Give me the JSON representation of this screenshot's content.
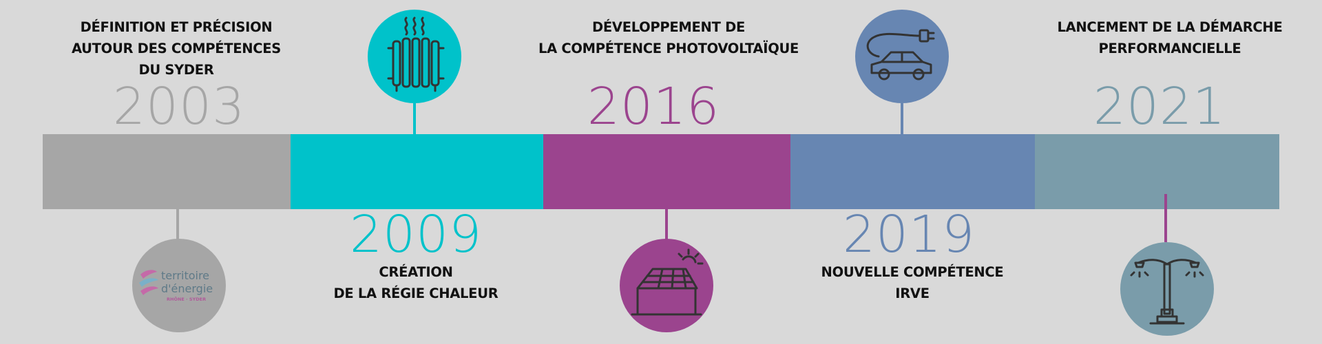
{
  "colors": {
    "background": "#d9d9d9",
    "gray": "#a6a6a6",
    "cyan": "#00c2ca",
    "magenta": "#9b448e",
    "blue": "#6786b2",
    "teal": "#7a9caa",
    "text": "#111111"
  },
  "milestones": [
    {
      "year": "2003",
      "label_lines": [
        "DÉFINITION ET PRÉCISION",
        "AUTOUR DES COMPÉTENCES",
        "DU SYDER"
      ],
      "icon": "logo-icon",
      "color": "#a6a6a6"
    },
    {
      "year": "2009",
      "label_lines": [
        "CRÉATION",
        "DE LA RÉGIE CHALEUR"
      ],
      "icon": "radiator-icon",
      "color": "#00c2ca"
    },
    {
      "year": "2016",
      "label_lines": [
        "DÉVELOPPEMENT DE",
        "LA COMPÉTENCE PHOTOVOLTAÏQUE"
      ],
      "icon": "solar-house-icon",
      "color": "#9b448e"
    },
    {
      "year": "2019",
      "label_lines": [
        "NOUVELLE COMPÉTENCE",
        "IRVE"
      ],
      "icon": "electric-car-icon",
      "color": "#6786b2"
    },
    {
      "year": "2021",
      "label_lines": [
        "LANCEMENT DE LA DÉMARCHE",
        "PERFORMANCIELLE"
      ],
      "icon": "street-lamp-icon",
      "color": "#7a9caa"
    }
  ],
  "logo": {
    "line1": "territoire",
    "line2": "d'énergie",
    "line3": "RHÔNE · SYDER"
  }
}
